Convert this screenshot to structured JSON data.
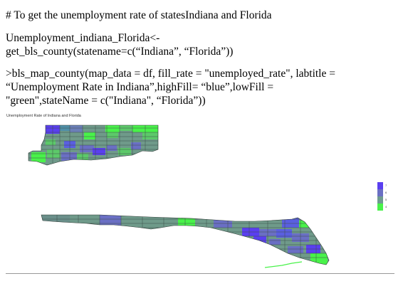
{
  "document": {
    "comment": "# To get the unemployment rate of statesIndiana and Florida",
    "code_line_1": "Unemployment_indiana_Florida<-\nget_bls_county(statename=c(“Indiana”, “Florida”))",
    "code_line_2": ">bls_map_county(map_data = df, fill_rate = \"unemployed_rate\", labtitle =\n“Unemployment Rate in Indiana”,highFill= “blue”,lowFill =\n\"green\",stateName = c(\"Indiana\", “Florida”))"
  },
  "map": {
    "title": "Unemployment Rate of Indiana and Florida",
    "high_color": "#5a3ff0",
    "low_color": "#49f24a",
    "mid_color": "#6b9a86",
    "legend": {
      "labels": [
        "7",
        "6",
        "5",
        "4"
      ],
      "colors": [
        "#5a3ff0",
        "#6a6fc4",
        "#6f9a90",
        "#49f24a"
      ]
    }
  }
}
